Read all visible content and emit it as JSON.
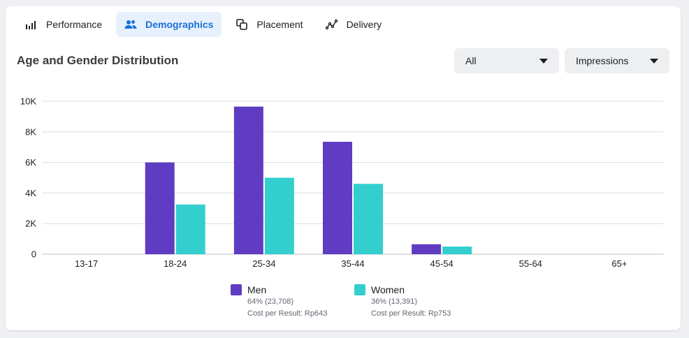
{
  "tabs": [
    {
      "label": "Performance",
      "icon": "bar-chart-icon",
      "active": false
    },
    {
      "label": "Demographics",
      "icon": "people-icon",
      "active": true
    },
    {
      "label": "Placement",
      "icon": "overlap-squares-icon",
      "active": false
    },
    {
      "label": "Delivery",
      "icon": "line-graph-icon",
      "active": false
    }
  ],
  "title": "Age and Gender Distribution",
  "filter_dropdown": {
    "value": "All"
  },
  "metric_dropdown": {
    "value": "Impressions"
  },
  "colors": {
    "men": "#5f3cc2",
    "women": "#33cfce",
    "accent": "#1a6fd8"
  },
  "legend": [
    {
      "name": "Men",
      "share": "64% (23,708)",
      "cost": "Cost per Result: Rp643"
    },
    {
      "name": "Women",
      "share": "36% (13,391)",
      "cost": "Cost per Result: Rp753"
    }
  ],
  "chart_data": {
    "type": "bar",
    "categories": [
      "13-17",
      "18-24",
      "25-34",
      "35-44",
      "45-54",
      "55-64",
      "65+"
    ],
    "series": [
      {
        "name": "Men",
        "values": [
          0,
          6000,
          9650,
          7350,
          650,
          0,
          0
        ]
      },
      {
        "name": "Women",
        "values": [
          0,
          3250,
          5000,
          4600,
          500,
          0,
          0
        ]
      }
    ],
    "ylim": [
      0,
      10000
    ],
    "yticks": [
      0,
      2000,
      4000,
      6000,
      8000,
      10000
    ],
    "ytick_labels": [
      "0",
      "2K",
      "4K",
      "6K",
      "8K",
      "10K"
    ],
    "grid": true,
    "legend_position": "bottom"
  }
}
